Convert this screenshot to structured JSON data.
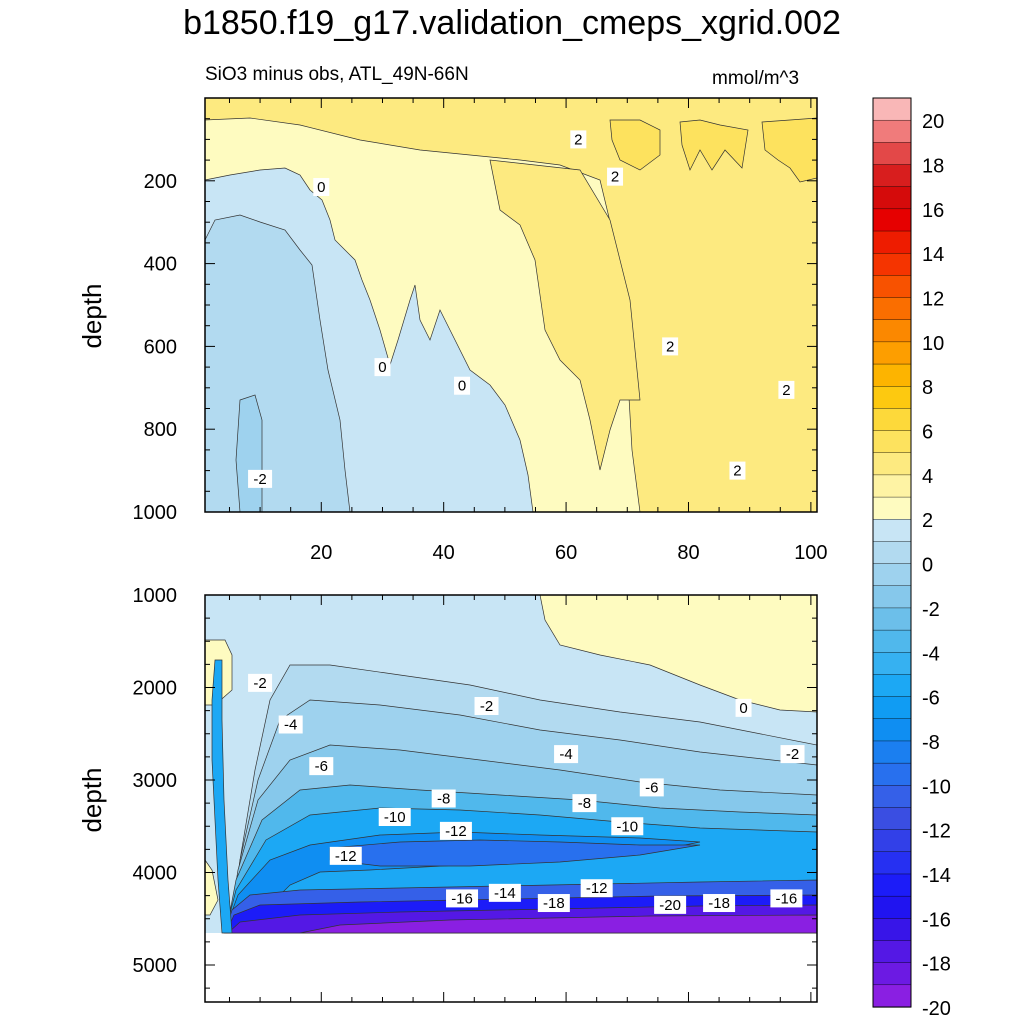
{
  "title": "b1850.f19_g17.validation_cmeps_xgrid.002",
  "subtitle": "SiO3 minus obs, ATL_49N-66N",
  "units": "mmol/m^3",
  "chart_data": [
    {
      "type": "heatmap",
      "panel": "upper",
      "ylabel": "depth",
      "xlabel": "",
      "xlim": [
        1,
        101
      ],
      "ylim": [
        0,
        1000
      ],
      "y_inverted": true,
      "x_ticks": [
        "20",
        "40",
        "60",
        "80",
        "100"
      ],
      "y_ticks": [
        "200",
        "400",
        "600",
        "800",
        "1000"
      ],
      "contour_labels": [
        {
          "text": "2",
          "x": 62,
          "y": 100
        },
        {
          "text": "2",
          "x": 68,
          "y": 190
        },
        {
          "text": "0",
          "x": 20,
          "y": 215
        },
        {
          "text": "0",
          "x": 30,
          "y": 650
        },
        {
          "text": "0",
          "x": 43,
          "y": 695
        },
        {
          "text": "2",
          "x": 77,
          "y": 600
        },
        {
          "text": "2",
          "x": 96,
          "y": 705
        },
        {
          "text": "2",
          "x": 88,
          "y": 900
        },
        {
          "text": "-2",
          "x": 10,
          "y": 920
        }
      ]
    },
    {
      "type": "heatmap",
      "panel": "lower",
      "ylabel": "depth",
      "xlabel": "",
      "xlim": [
        1,
        101
      ],
      "ylim": [
        1000,
        5400
      ],
      "y_inverted": true,
      "y_ticks": [
        "1000",
        "2000",
        "3000",
        "4000",
        "5000"
      ],
      "contour_labels": [
        {
          "text": "-2",
          "x": 10,
          "y": 1950
        },
        {
          "text": "-2",
          "x": 47,
          "y": 2200
        },
        {
          "text": "0",
          "x": 89,
          "y": 2220
        },
        {
          "text": "-4",
          "x": 15,
          "y": 2400
        },
        {
          "text": "-2",
          "x": 97,
          "y": 2720
        },
        {
          "text": "-4",
          "x": 60,
          "y": 2720
        },
        {
          "text": "-6",
          "x": 20,
          "y": 2850
        },
        {
          "text": "-6",
          "x": 74,
          "y": 3080
        },
        {
          "text": "-8",
          "x": 40,
          "y": 3200
        },
        {
          "text": "-8",
          "x": 63,
          "y": 3250
        },
        {
          "text": "-10",
          "x": 32,
          "y": 3400
        },
        {
          "text": "-10",
          "x": 70,
          "y": 3500
        },
        {
          "text": "-12",
          "x": 42,
          "y": 3550
        },
        {
          "text": "-12",
          "x": 24,
          "y": 3820
        },
        {
          "text": "-12",
          "x": 65,
          "y": 4170
        },
        {
          "text": "-14",
          "x": 50,
          "y": 4220
        },
        {
          "text": "-16",
          "x": 43,
          "y": 4280
        },
        {
          "text": "-18",
          "x": 58,
          "y": 4330
        },
        {
          "text": "-20",
          "x": 77,
          "y": 4350
        },
        {
          "text": "-18",
          "x": 85,
          "y": 4330
        },
        {
          "text": "-16",
          "x": 96,
          "y": 4280
        }
      ]
    }
  ],
  "colorbar": {
    "labels": [
      "20",
      "18",
      "16",
      "14",
      "12",
      "10",
      "8",
      "6",
      "4",
      "2",
      "0",
      "-2",
      "-4",
      "-6",
      "-8",
      "-10",
      "-12",
      "-14",
      "-16",
      "-18",
      "-20"
    ],
    "colors": [
      "#f9b7b7",
      "#f07b7b",
      "#e34848",
      "#d81e1e",
      "#d50b0b",
      "#e60000",
      "#ee1c00",
      "#f53400",
      "#f85200",
      "#fa6e00",
      "#fb8800",
      "#fd9e00",
      "#fdb400",
      "#fdc910",
      "#fdd93a",
      "#fde25e",
      "#fdea80",
      "#fef3a4",
      "#fefbc0",
      "#c8e5f5",
      "#b2daf0",
      "#9ed2ee",
      "#86c8eb",
      "#6cbfea",
      "#50b8ec",
      "#36b1f1",
      "#1ca8f4",
      "#109cf3",
      "#0f8ef2",
      "#1b7ff0",
      "#2870ee",
      "#3560e8",
      "#3a4ee2",
      "#3240e8",
      "#2630f2",
      "#1c1cf8",
      "#2014f0",
      "#3815e8",
      "#5418e5",
      "#6c1ae3",
      "#8a1fe2"
    ]
  }
}
